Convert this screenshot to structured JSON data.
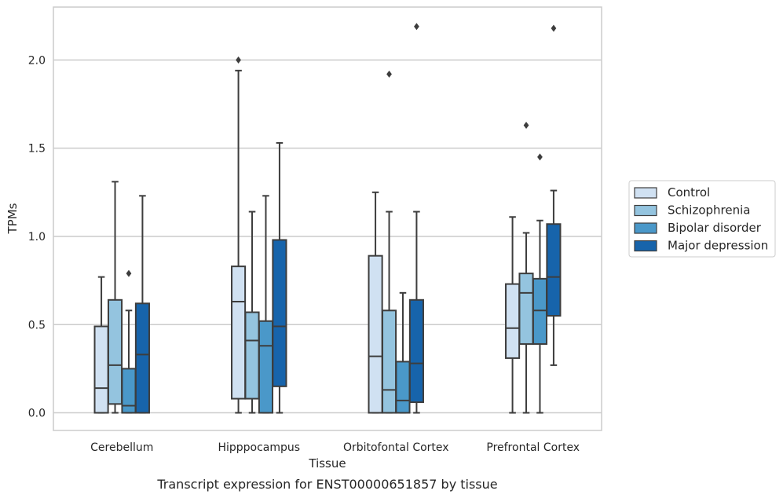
{
  "caption": "Transcript expression for ENST00000651857 by tissue",
  "chart_data": {
    "type": "boxplot",
    "xlabel": "Tissue",
    "ylabel": "TPMs",
    "ylim": [
      -0.1,
      2.3
    ],
    "yticks": [
      0.0,
      0.5,
      1.0,
      1.5,
      2.0
    ],
    "ytick_labels": [
      "0.0",
      "0.5",
      "1.0",
      "1.5",
      "2.0"
    ],
    "grid": "horizontal",
    "legend_position": "right",
    "categories": [
      "Cerebellum",
      "Hipppocampus",
      "Orbitofontal Cortex",
      "Prefrontal Cortex"
    ],
    "series": [
      {
        "name": "Control",
        "color": "#d0e1f2",
        "boxes": [
          {
            "whislo": 0.0,
            "q1": 0.0,
            "med": 0.14,
            "q3": 0.49,
            "whishi": 0.77,
            "fliers": []
          },
          {
            "whislo": 0.0,
            "q1": 0.08,
            "med": 0.63,
            "q3": 0.83,
            "whishi": 1.94,
            "fliers": [
              2.0
            ]
          },
          {
            "whislo": 0.0,
            "q1": 0.0,
            "med": 0.32,
            "q3": 0.89,
            "whishi": 1.25,
            "fliers": []
          },
          {
            "whislo": 0.0,
            "q1": 0.31,
            "med": 0.48,
            "q3": 0.73,
            "whishi": 1.11,
            "fliers": []
          }
        ]
      },
      {
        "name": "Schizophrenia",
        "color": "#94c4df",
        "boxes": [
          {
            "whislo": 0.0,
            "q1": 0.05,
            "med": 0.27,
            "q3": 0.64,
            "whishi": 1.31,
            "fliers": []
          },
          {
            "whislo": 0.0,
            "q1": 0.08,
            "med": 0.41,
            "q3": 0.57,
            "whishi": 1.14,
            "fliers": []
          },
          {
            "whislo": 0.0,
            "q1": 0.0,
            "med": 0.13,
            "q3": 0.58,
            "whishi": 1.14,
            "fliers": [
              1.92
            ]
          },
          {
            "whislo": 0.0,
            "q1": 0.39,
            "med": 0.68,
            "q3": 0.79,
            "whishi": 1.02,
            "fliers": [
              1.63
            ]
          }
        ]
      },
      {
        "name": "Bipolar disorder",
        "color": "#4a98c9",
        "boxes": [
          {
            "whislo": 0.0,
            "q1": 0.0,
            "med": 0.04,
            "q3": 0.25,
            "whishi": 0.58,
            "fliers": [
              0.79
            ]
          },
          {
            "whislo": 0.0,
            "q1": 0.0,
            "med": 0.38,
            "q3": 0.52,
            "whishi": 1.23,
            "fliers": []
          },
          {
            "whislo": 0.0,
            "q1": 0.0,
            "med": 0.07,
            "q3": 0.29,
            "whishi": 0.68,
            "fliers": []
          },
          {
            "whislo": 0.0,
            "q1": 0.39,
            "med": 0.58,
            "q3": 0.76,
            "whishi": 1.09,
            "fliers": [
              1.45
            ]
          }
        ]
      },
      {
        "name": "Major depression",
        "color": "#1764ab",
        "boxes": [
          {
            "whislo": 0.0,
            "q1": 0.0,
            "med": 0.33,
            "q3": 0.62,
            "whishi": 1.23,
            "fliers": []
          },
          {
            "whislo": 0.0,
            "q1": 0.15,
            "med": 0.49,
            "q3": 0.98,
            "whishi": 1.53,
            "fliers": []
          },
          {
            "whislo": 0.0,
            "q1": 0.06,
            "med": 0.28,
            "q3": 0.64,
            "whishi": 1.14,
            "fliers": [
              2.19
            ]
          },
          {
            "whislo": 0.27,
            "q1": 0.55,
            "med": 0.77,
            "q3": 1.07,
            "whishi": 1.26,
            "fliers": [
              2.18
            ]
          }
        ]
      }
    ]
  }
}
